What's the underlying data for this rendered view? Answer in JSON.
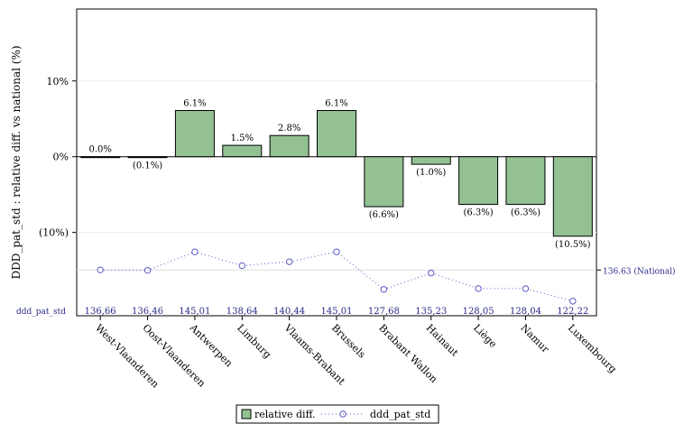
{
  "chart_data": {
    "type": "bar",
    "ylabel": "DDD_pat_std : relative diff. vs national (%)",
    "yticks": [
      "10%",
      "0%",
      "(10%)"
    ],
    "ylim": [
      -0.21,
      0.195
    ],
    "ytick_values": [
      0.1,
      0,
      -0.1
    ],
    "categories": [
      "West-Vlaanderen",
      "Oost-Vlaanderen",
      "Antwerpen",
      "Limburg",
      "Vlaams-Brabant",
      "Brussels",
      "Brabant Wallon",
      "Hainaut",
      "Liège",
      "Namur",
      "Luxembourg"
    ],
    "series": [
      {
        "name": "relative diff.",
        "type": "bar",
        "color": "#93c194",
        "values": [
          0.0,
          -0.001,
          0.061,
          0.015,
          0.028,
          0.061,
          -0.066,
          -0.01,
          -0.063,
          -0.063,
          -0.105
        ],
        "labels": [
          "0.0%",
          "(0.1%)",
          "6.1%",
          "1.5%",
          "2.8%",
          "6.1%",
          "(6.6%)",
          "(1.0%)",
          "(6.3%)",
          "(6.3%)",
          "(10.5%)"
        ]
      },
      {
        "name": "ddd_pat_std",
        "type": "line",
        "style": "dotted-circle-markers",
        "color": "#5b5bc8",
        "values": [
          136.66,
          136.46,
          145.01,
          138.64,
          140.44,
          145.01,
          127.68,
          135.23,
          128.05,
          128.04,
          122.22
        ],
        "labels": [
          "136,66",
          "136,46",
          "145,01",
          "138,64",
          "140,44",
          "145,01",
          "127,68",
          "135,23",
          "128,05",
          "128,04",
          "122,22"
        ],
        "row_label": "ddd_pat_std"
      }
    ],
    "reference": {
      "value": 136.63,
      "label": "136.63 (National)"
    },
    "legend": {
      "placement": "bottom-center",
      "items": [
        "relative diff.",
        "ddd_pat_std"
      ]
    }
  }
}
